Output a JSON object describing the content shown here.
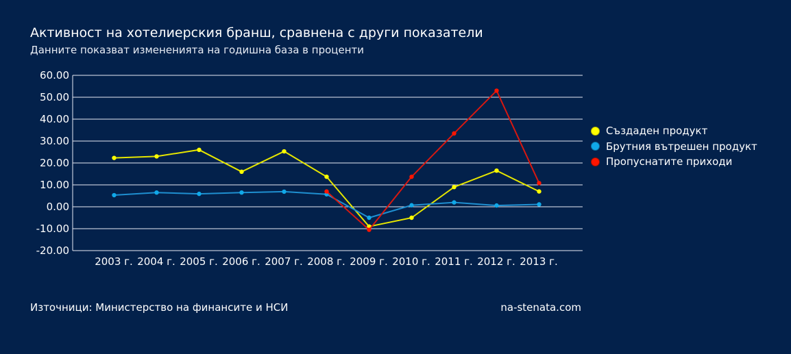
{
  "title": "Активност на хотелиерския бранш, сравнена с други показатели",
  "subtitle": "Данните показват измененията на годишна база в проценти",
  "source_text": "Източници: Министерство на финансите и НСИ",
  "site_text": "na-stenata.com",
  "legend": {
    "items": [
      {
        "label": "Създаден продукт",
        "color": "#ffff00"
      },
      {
        "label": "Брутния вътрешен продукт",
        "color": "#10a8e8"
      },
      {
        "label": "Пропуснатите приходи",
        "color": "#ff1500"
      }
    ]
  },
  "chart_data": {
    "type": "line",
    "title": "Активност на хотелиерския бранш, сравнена с други показатели",
    "subtitle": "Данните показват измененията на годишна база в проценти",
    "xlabel": "",
    "ylabel": "",
    "ylim": [
      -20,
      60
    ],
    "yticks": [
      "60.00",
      "50.00",
      "40.00",
      "30.00",
      "20.00",
      "10.00",
      "0.00",
      "-10.00",
      "-20.00"
    ],
    "categories": [
      "2003 г.",
      "2004 г.",
      "2005 г.",
      "2006 г.",
      "2007 г.",
      "2008 г.",
      "2009 г.",
      "2010 г.",
      "2011 г.",
      "2012 г.",
      "2013 г."
    ],
    "grid": true,
    "legend_position": "right",
    "series": [
      {
        "name": "Създаден продукт",
        "color": "#ffff00",
        "line_color": "#e6e600",
        "values": [
          22.3,
          23.0,
          26.0,
          16.0,
          25.3,
          13.7,
          -9.0,
          -5.0,
          9.0,
          16.5,
          7.0
        ]
      },
      {
        "name": "Брутния вътрешен продукт",
        "color": "#10a8e8",
        "line_color": "#1f8fd0",
        "values": [
          5.3,
          6.5,
          5.9,
          6.5,
          6.9,
          5.7,
          -5.0,
          0.7,
          2.0,
          0.6,
          1.1
        ]
      },
      {
        "name": "Пропуснатите приходи",
        "color": "#ff1500",
        "line_color": "#d81810",
        "values": [
          null,
          null,
          null,
          null,
          null,
          7.0,
          -10.5,
          13.7,
          33.5,
          53.0,
          10.8
        ]
      }
    ]
  }
}
